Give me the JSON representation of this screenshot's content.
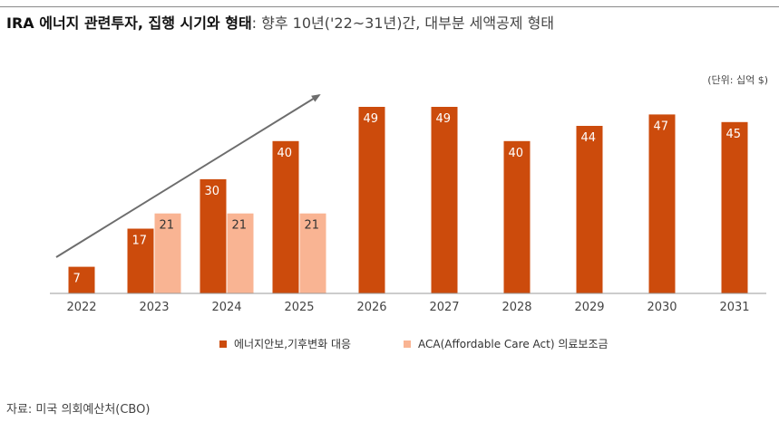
{
  "header": {
    "title_bold": "IRA 에너지 관련투자, 집행 시기와 형태",
    "title_rest": ": 향후 10년('22~31년)간, 대부분 세액공제 형태",
    "unit": "(단위: 십억 $)"
  },
  "source": "자료: 미국 의회예산처(CBO)",
  "chart_data": {
    "type": "bar",
    "categories": [
      "2022",
      "2023",
      "2024",
      "2025",
      "2026",
      "2027",
      "2028",
      "2029",
      "2030",
      "2031"
    ],
    "series": [
      {
        "name": "에너지안보,기후변화 대응",
        "color": "#cc4b0c",
        "values": [
          7,
          17,
          30,
          40,
          49,
          49,
          40,
          44,
          47,
          45
        ]
      },
      {
        "name": "ACA(Affordable Care Act) 의료보조금",
        "color": "#f9b493",
        "values": [
          null,
          21,
          21,
          21,
          null,
          null,
          null,
          null,
          null,
          null
        ]
      }
    ],
    "ylim": [
      0,
      50
    ],
    "legend_position": "bottom",
    "grid": false,
    "annotation": "upward-trend-arrow"
  }
}
